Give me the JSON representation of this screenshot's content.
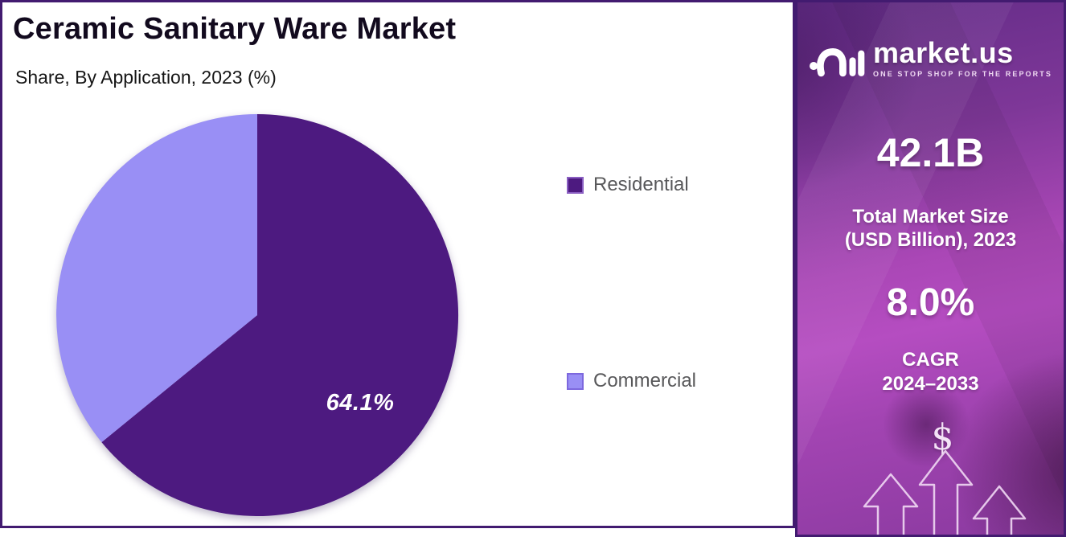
{
  "header": {
    "title": "Ceramic Sanitary Ware Market",
    "subtitle": "Share, By Application, 2023 (%)"
  },
  "chart_data": {
    "type": "pie",
    "title": "Ceramic Sanitary Ware Market",
    "subtitle": "Share, By Application, 2023 (%)",
    "categories": [
      "Residential",
      "Commercial"
    ],
    "values": [
      64.1,
      35.9
    ],
    "unit": "%",
    "colors": [
      "#4d1a80",
      "#998ff5"
    ],
    "start_angle_deg": 0,
    "direction": "clockwise",
    "data_labels": [
      "64.1%",
      ""
    ],
    "legend_position": "right"
  },
  "legend": {
    "items": [
      {
        "label": "Residential",
        "swatch_color": "#4d1a80",
        "swatch_border": "#8a5ec2"
      },
      {
        "label": "Commercial",
        "swatch_color": "#998ff5",
        "swatch_border": "#7d68de"
      }
    ]
  },
  "sidebar": {
    "brand": "market.us",
    "tagline": "ONE STOP SHOP FOR THE REPORTS",
    "market_size_value": "42.1B",
    "market_size_label_line1": "Total Market Size",
    "market_size_label_line2": "(USD Billion), 2023",
    "cagr_value": "8.0%",
    "cagr_label_line1": "CAGR",
    "cagr_label_line2": "2024–2033",
    "dollar_symbol": "$"
  },
  "colors": {
    "frame": "#421b70",
    "panel_bg": "#ffffff",
    "pie_residential": "#4d1a80",
    "pie_commercial": "#998ff5",
    "legend_text": "#58585a"
  }
}
